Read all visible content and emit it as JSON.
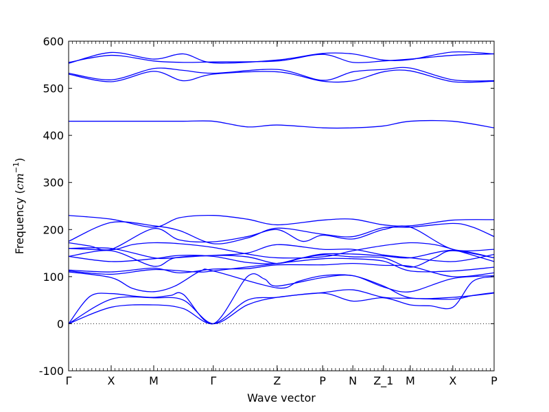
{
  "chart_data": {
    "type": "line",
    "xlabel": "Wave vector",
    "ylabel": "Frequency (cm⁻¹)",
    "ylabel_parts": {
      "text": "Frequency (",
      "unit": "cm",
      "exp": "−1",
      "close": ")"
    },
    "ylim": [
      -100,
      600
    ],
    "yticks": [
      -100,
      0,
      100,
      200,
      300,
      400,
      500,
      600
    ],
    "xlim": [
      0,
      10
    ],
    "high_symmetry_points": [
      {
        "label": "Γ",
        "x": 0
      },
      {
        "label": "X",
        "x": 1
      },
      {
        "label": "M",
        "x": 2
      },
      {
        "label": "Γ",
        "x": 3.4
      },
      {
        "label": "Z",
        "x": 4.9
      },
      {
        "label": "P",
        "x": 5.97
      },
      {
        "label": "N",
        "x": 6.68
      },
      {
        "label": "Z_1",
        "x": 7.4
      },
      {
        "label": "M",
        "x": 8.03
      },
      {
        "label": "X",
        "x": 9.03
      },
      {
        "label": "P",
        "x": 10
      }
    ],
    "zero_line": 0,
    "series_color": "#0000ff",
    "bands": [
      {
        "points": [
          [
            0,
            0
          ],
          [
            1,
            35
          ],
          [
            2,
            40
          ],
          [
            2.7,
            32
          ],
          [
            3.4,
            0
          ],
          [
            4.2,
            50
          ],
          [
            4.9,
            56
          ],
          [
            5.97,
            65
          ],
          [
            6.68,
            48
          ],
          [
            7.4,
            55
          ],
          [
            8.03,
            40
          ],
          [
            8.5,
            38
          ],
          [
            9.03,
            35
          ],
          [
            9.5,
            90
          ],
          [
            10,
            100
          ]
        ]
      },
      {
        "points": [
          [
            0,
            0
          ],
          [
            1,
            52
          ],
          [
            2,
            55
          ],
          [
            2.7,
            50
          ],
          [
            3.4,
            0
          ],
          [
            4.2,
            40
          ],
          [
            4.9,
            56
          ],
          [
            5.97,
            66
          ],
          [
            6.68,
            72
          ],
          [
            7.4,
            56
          ],
          [
            8.03,
            54
          ],
          [
            9.03,
            52
          ],
          [
            9.5,
            60
          ],
          [
            10,
            66
          ]
        ]
      },
      {
        "points": [
          [
            0,
            0
          ],
          [
            0.5,
            58
          ],
          [
            1,
            64
          ],
          [
            1.6,
            58
          ],
          [
            2,
            56
          ],
          [
            2.4,
            60
          ],
          [
            2.7,
            62
          ],
          [
            3.4,
            0
          ],
          [
            4.2,
            100
          ],
          [
            4.6,
            95
          ],
          [
            4.9,
            80
          ],
          [
            5.97,
            98
          ],
          [
            6.68,
            102
          ],
          [
            7.4,
            78
          ],
          [
            8.03,
            68
          ],
          [
            9.03,
            96
          ],
          [
            10,
            102
          ]
        ]
      },
      {
        "points": [
          [
            0,
            110
          ],
          [
            1,
            98
          ],
          [
            1.5,
            75
          ],
          [
            2,
            68
          ],
          [
            2.5,
            80
          ],
          [
            3.1,
            112
          ],
          [
            3.4,
            112
          ],
          [
            4.9,
            76
          ],
          [
            5.4,
            90
          ],
          [
            5.97,
            102
          ],
          [
            6.68,
            102
          ],
          [
            7.4,
            80
          ],
          [
            8.03,
            55
          ],
          [
            9.03,
            56
          ],
          [
            10,
            65
          ]
        ]
      },
      {
        "points": [
          [
            0,
            114
          ],
          [
            1,
            110
          ],
          [
            2,
            118
          ],
          [
            2.6,
            108
          ],
          [
            3.4,
            116
          ],
          [
            4.2,
            117
          ],
          [
            4.9,
            125
          ],
          [
            5.97,
            125
          ],
          [
            6.68,
            128
          ],
          [
            7.4,
            124
          ],
          [
            8.03,
            122
          ],
          [
            9.03,
            100
          ],
          [
            10,
            108
          ]
        ]
      },
      {
        "points": [
          [
            0,
            112
          ],
          [
            1,
            105
          ],
          [
            2,
            115
          ],
          [
            3,
            110
          ],
          [
            3.4,
            112
          ],
          [
            4.9,
            128
          ],
          [
            5.97,
            138
          ],
          [
            6.68,
            138
          ],
          [
            7.4,
            133
          ],
          [
            8.03,
            112
          ],
          [
            9.03,
            112
          ],
          [
            10,
            120
          ]
        ]
      },
      {
        "points": [
          [
            0,
            143
          ],
          [
            1,
            132
          ],
          [
            2,
            138
          ],
          [
            2.6,
            145
          ],
          [
            3.4,
            143
          ],
          [
            4.2,
            130
          ],
          [
            4.9,
            128
          ],
          [
            5.4,
            138
          ],
          [
            5.97,
            146
          ],
          [
            6.68,
            142
          ],
          [
            7.4,
            140
          ],
          [
            8.03,
            120
          ],
          [
            8.6,
            140
          ],
          [
            9.03,
            155
          ],
          [
            10,
            140
          ]
        ]
      },
      {
        "points": [
          [
            0,
            143
          ],
          [
            1,
            155
          ],
          [
            2,
            122
          ],
          [
            2.5,
            140
          ],
          [
            3.4,
            145
          ],
          [
            4.2,
            150
          ],
          [
            4.9,
            168
          ],
          [
            5.97,
            158
          ],
          [
            6.68,
            158
          ],
          [
            7.4,
            146
          ],
          [
            8.03,
            140
          ],
          [
            9.03,
            132
          ],
          [
            10,
            147
          ]
        ]
      },
      {
        "points": [
          [
            0,
            160
          ],
          [
            1,
            160
          ],
          [
            2,
            140
          ],
          [
            2.5,
            140
          ],
          [
            3.4,
            145
          ],
          [
            4.2,
            142
          ],
          [
            4.9,
            128
          ],
          [
            5.5,
            140
          ],
          [
            5.97,
            148
          ],
          [
            6.68,
            148
          ],
          [
            7.4,
            144
          ],
          [
            8.03,
            140
          ],
          [
            9.03,
            156
          ],
          [
            10,
            140
          ]
        ]
      },
      {
        "points": [
          [
            0,
            160
          ],
          [
            1,
            157
          ],
          [
            1.5,
            168
          ],
          [
            2,
            172
          ],
          [
            2.6,
            170
          ],
          [
            3.4,
            162
          ],
          [
            4.2,
            148
          ],
          [
            4.9,
            140
          ],
          [
            5.97,
            142
          ],
          [
            6.68,
            155
          ],
          [
            7.4,
            166
          ],
          [
            8.03,
            172
          ],
          [
            8.6,
            168
          ],
          [
            9.03,
            158
          ],
          [
            10,
            132
          ]
        ]
      },
      {
        "points": [
          [
            0,
            172
          ],
          [
            0.5,
            165
          ],
          [
            1,
            158
          ],
          [
            2,
            202
          ],
          [
            2.6,
            178
          ],
          [
            3.4,
            174
          ],
          [
            4.2,
            185
          ],
          [
            4.9,
            200
          ],
          [
            5.5,
            175
          ],
          [
            5.97,
            188
          ],
          [
            6.68,
            180
          ],
          [
            7.4,
            200
          ],
          [
            8.03,
            205
          ],
          [
            9.03,
            158
          ],
          [
            10,
            158
          ]
        ]
      },
      {
        "points": [
          [
            0,
            175
          ],
          [
            1,
            215
          ],
          [
            2,
            208
          ],
          [
            2.6,
            198
          ],
          [
            3.4,
            170
          ],
          [
            4.2,
            182
          ],
          [
            4.9,
            203
          ],
          [
            5.97,
            190
          ],
          [
            6.68,
            185
          ],
          [
            7.4,
            204
          ],
          [
            8.03,
            205
          ],
          [
            9.03,
            213
          ],
          [
            9.5,
            205
          ],
          [
            10,
            185
          ]
        ]
      },
      {
        "points": [
          [
            0,
            230
          ],
          [
            1,
            222
          ],
          [
            2,
            205
          ],
          [
            2.6,
            225
          ],
          [
            3.4,
            230
          ],
          [
            4.2,
            222
          ],
          [
            4.9,
            210
          ],
          [
            5.97,
            220
          ],
          [
            6.68,
            222
          ],
          [
            7.4,
            210
          ],
          [
            8.03,
            208
          ],
          [
            9.03,
            220
          ],
          [
            10,
            221
          ]
        ]
      },
      {
        "points": [
          [
            0,
            430
          ],
          [
            1,
            430
          ],
          [
            2,
            430
          ],
          [
            2.7,
            430
          ],
          [
            3.4,
            430
          ],
          [
            4.2,
            418
          ],
          [
            4.9,
            422
          ],
          [
            5.97,
            416
          ],
          [
            6.68,
            416
          ],
          [
            7.4,
            420
          ],
          [
            8.03,
            430
          ],
          [
            9.03,
            430
          ],
          [
            10,
            416
          ]
        ]
      },
      {
        "points": [
          [
            0,
            530
          ],
          [
            1,
            514
          ],
          [
            2,
            536
          ],
          [
            2.7,
            516
          ],
          [
            3.4,
            530
          ],
          [
            4.9,
            535
          ],
          [
            5.97,
            515
          ],
          [
            6.68,
            516
          ],
          [
            7.4,
            535
          ],
          [
            8.03,
            537
          ],
          [
            9.03,
            514
          ],
          [
            10,
            515
          ]
        ]
      },
      {
        "points": [
          [
            0,
            532
          ],
          [
            1,
            518
          ],
          [
            2,
            542
          ],
          [
            2.7,
            538
          ],
          [
            3.4,
            532
          ],
          [
            4.9,
            540
          ],
          [
            5.97,
            517
          ],
          [
            6.68,
            535
          ],
          [
            7.4,
            540
          ],
          [
            8.03,
            543
          ],
          [
            9.03,
            518
          ],
          [
            10,
            516
          ]
        ]
      },
      {
        "points": [
          [
            0,
            553
          ],
          [
            1,
            576
          ],
          [
            2,
            562
          ],
          [
            2.7,
            573
          ],
          [
            3.4,
            554
          ],
          [
            4.9,
            560
          ],
          [
            5.97,
            574
          ],
          [
            6.68,
            573
          ],
          [
            7.4,
            560
          ],
          [
            8.03,
            561
          ],
          [
            9.03,
            577
          ],
          [
            10,
            573
          ]
        ]
      },
      {
        "points": [
          [
            0,
            555
          ],
          [
            1,
            570
          ],
          [
            2,
            558
          ],
          [
            2.7,
            555
          ],
          [
            3.4,
            556
          ],
          [
            4.9,
            558
          ],
          [
            5.97,
            572
          ],
          [
            6.68,
            555
          ],
          [
            7.4,
            558
          ],
          [
            8.03,
            562
          ],
          [
            9.03,
            570
          ],
          [
            10,
            573
          ]
        ]
      }
    ]
  }
}
